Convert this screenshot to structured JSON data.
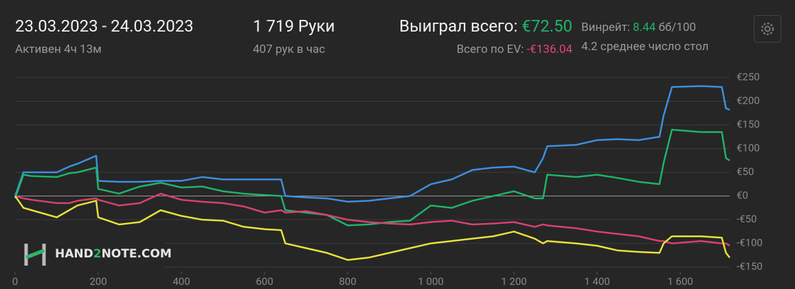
{
  "header": {
    "date_range": "23.03.2023 - 24.03.2023",
    "active": "Активен 4ч 13м",
    "hands": "1 719 Руки",
    "hands_per_hour": "407 рук в час",
    "won_label": "Выиграл всего:",
    "won_value": "€72.50",
    "ev_label": "Всего по EV:",
    "ev_value": "-€136.04",
    "winrate_label": "Винрейт:",
    "winrate_value": "8.44",
    "winrate_unit": "бб/100",
    "tables": "4.2 среднее число стол"
  },
  "watermark": {
    "part1": "HAND",
    "part2": "2",
    "part3": "NOTE.COM"
  },
  "chart_data": {
    "type": "line",
    "x": [
      0,
      20,
      40,
      100,
      130,
      150,
      195,
      200,
      250,
      300,
      350,
      400,
      450,
      500,
      550,
      600,
      640,
      650,
      700,
      750,
      800,
      850,
      900,
      950,
      1000,
      1050,
      1100,
      1150,
      1200,
      1250,
      1270,
      1280,
      1350,
      1400,
      1450,
      1500,
      1550,
      1560,
      1580,
      1650,
      1700,
      1710,
      1719
    ],
    "series": [
      {
        "color": "#3d8fe0",
        "values": [
          0,
          50,
          50,
          50,
          62,
          68,
          85,
          32,
          30,
          30,
          32,
          32,
          40,
          35,
          35,
          35,
          35,
          0,
          -3,
          -5,
          -12,
          -10,
          -5,
          0,
          25,
          35,
          55,
          60,
          62,
          50,
          80,
          105,
          108,
          118,
          120,
          118,
          125,
          170,
          230,
          232,
          230,
          185,
          182
        ]
      },
      {
        "color": "#1fb36a",
        "values": [
          -5,
          45,
          42,
          40,
          48,
          50,
          60,
          15,
          5,
          20,
          28,
          18,
          20,
          10,
          5,
          2,
          0,
          -30,
          -35,
          -40,
          -62,
          -60,
          -55,
          -52,
          -20,
          -25,
          -10,
          0,
          10,
          -5,
          -5,
          45,
          40,
          45,
          38,
          30,
          25,
          70,
          140,
          135,
          135,
          80,
          75
        ]
      },
      {
        "color": "#d9416f",
        "values": [
          0,
          -5,
          -8,
          -15,
          -15,
          -10,
          -5,
          -8,
          -20,
          -15,
          5,
          -8,
          -12,
          -15,
          -22,
          -35,
          -30,
          -35,
          -32,
          -40,
          -50,
          -55,
          -58,
          -60,
          -55,
          -52,
          -60,
          -58,
          -55,
          -65,
          -60,
          -62,
          -68,
          -75,
          -80,
          -85,
          -95,
          -95,
          -100,
          -95,
          -100,
          -100,
          -105
        ]
      },
      {
        "color": "#e8e23a",
        "values": [
          0,
          -25,
          -30,
          -45,
          -30,
          -20,
          -10,
          -45,
          -60,
          -55,
          -30,
          -42,
          -50,
          -52,
          -65,
          -70,
          -72,
          -100,
          -110,
          -120,
          -135,
          -130,
          -120,
          -110,
          -100,
          -95,
          -90,
          -85,
          -75,
          -90,
          -100,
          -95,
          -100,
          -105,
          -115,
          -118,
          -120,
          -100,
          -85,
          -85,
          -88,
          -120,
          -130
        ]
      }
    ],
    "xlim": [
      0,
      1719
    ],
    "xticks": [
      0,
      200,
      400,
      600,
      800,
      {
        "value": 1000,
        "label": "1 000"
      },
      {
        "value": 1200,
        "label": "1 200"
      },
      {
        "value": 1400,
        "label": "1 400"
      },
      {
        "value": 1600,
        "label": "1 600"
      }
    ],
    "ylim": [
      -160,
      255
    ],
    "yticks": [
      {
        "value": 250,
        "label": "€250"
      },
      {
        "value": 200,
        "label": "€200"
      },
      {
        "value": 150,
        "label": "€150"
      },
      {
        "value": 100,
        "label": "€100"
      },
      {
        "value": 50,
        "label": "€50"
      },
      {
        "value": 0,
        "label": "€0"
      },
      {
        "value": -50,
        "label": "-€50"
      },
      {
        "value": -100,
        "label": "-€100"
      },
      {
        "value": -150,
        "label": "-€150"
      }
    ],
    "grid": true
  }
}
